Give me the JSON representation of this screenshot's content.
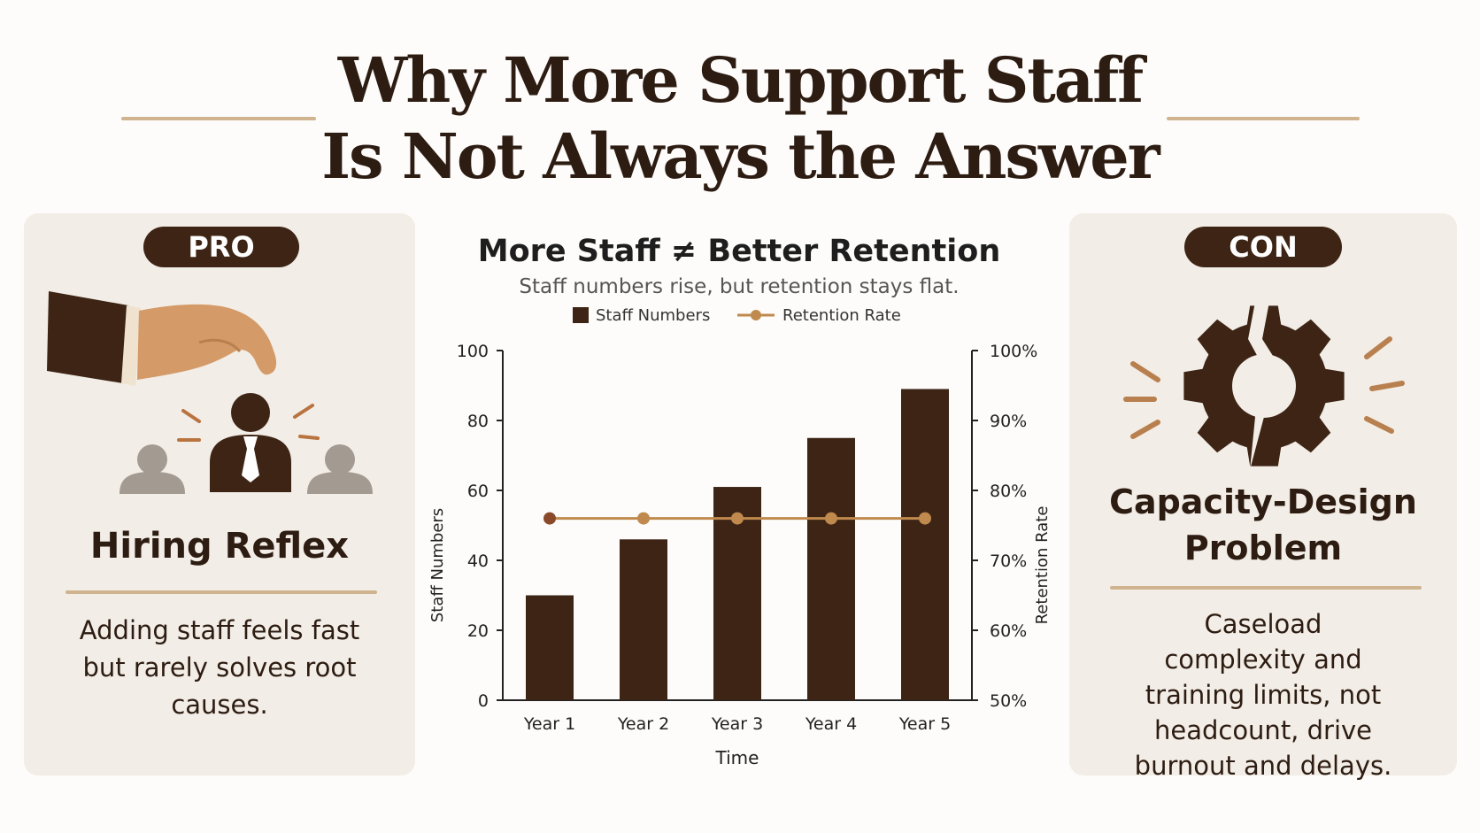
{
  "header": {
    "title_line1": "Why More Support Staff",
    "title_line2": "Is Not Always the Answer"
  },
  "pro_panel": {
    "badge": "PRO",
    "heading": "Hiring Reflex",
    "body": "Adding staff feels fast but rarely solves root causes.",
    "icon": "hiring-hand-icon"
  },
  "con_panel": {
    "badge": "CON",
    "heading": "Capacity-Design Problem",
    "body": "Caseload complexity and training limits, not headcount, drive burnout and delays.",
    "icon": "broken-gear-icon"
  },
  "colors": {
    "dark_brown": "#3d2415",
    "tan": "#cfb48f",
    "retention_line": "#c08a4e",
    "panel_bg": "#f2ede6",
    "grey_person": "#a39a91"
  },
  "chart_data": {
    "type": "bar",
    "title": "More Staff ≠ Better Retention",
    "subtitle": "Staff numbers rise, but retention stays flat.",
    "categories": [
      "Year 1",
      "Year 2",
      "Year 3",
      "Year 4",
      "Year 5"
    ],
    "xlabel": "Time",
    "ylabel": "Staff Numbers",
    "y2label": "Retention Rate",
    "ylim": [
      0,
      100
    ],
    "y2lim": [
      50,
      100
    ],
    "yticks": [
      "0",
      "20",
      "40",
      "60",
      "80",
      "100"
    ],
    "y2ticks": [
      "50%",
      "60%",
      "70%",
      "80%",
      "90%",
      "100%"
    ],
    "legend_position": "top",
    "series": [
      {
        "name": "Staff Numbers",
        "type": "bar",
        "axis": "left",
        "values": [
          30,
          46,
          61,
          75,
          89
        ]
      },
      {
        "name": "Retention Rate",
        "type": "line",
        "axis": "right",
        "values": [
          76,
          76,
          76,
          76,
          76
        ]
      }
    ]
  }
}
